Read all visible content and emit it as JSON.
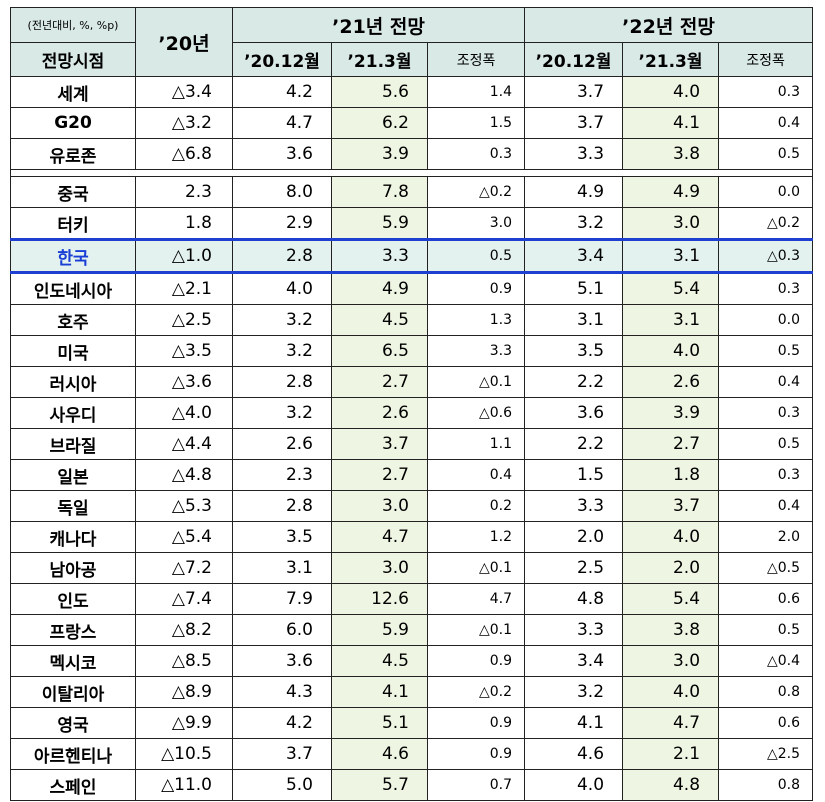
{
  "header": {
    "unit": "(전년대비, %, %p)",
    "row_label": "전망시점",
    "year20": "’20년",
    "group21": "’21년 전망",
    "group22": "’22년 전망",
    "col_dec": "’20.12월",
    "col_mar": "’21.3월",
    "col_adj": "조정폭"
  },
  "group1": [
    {
      "name": "세계",
      "y20": "△3.4",
      "a_dec": "4.2",
      "a_mar": "5.6",
      "a_adj": "1.4",
      "b_dec": "3.7",
      "b_mar": "4.0",
      "b_adj": "0.3"
    },
    {
      "name": "G20",
      "y20": "△3.2",
      "a_dec": "4.7",
      "a_mar": "6.2",
      "a_adj": "1.5",
      "b_dec": "3.7",
      "b_mar": "4.1",
      "b_adj": "0.4"
    },
    {
      "name": "유로존",
      "y20": "△6.8",
      "a_dec": "3.6",
      "a_mar": "3.9",
      "a_adj": "0.3",
      "b_dec": "3.3",
      "b_mar": "3.8",
      "b_adj": "0.5"
    }
  ],
  "group2": [
    {
      "name": "중국",
      "y20": "2.3",
      "a_dec": "8.0",
      "a_mar": "7.8",
      "a_adj": "△0.2",
      "b_dec": "4.9",
      "b_mar": "4.9",
      "b_adj": "0.0"
    },
    {
      "name": "터키",
      "y20": "1.8",
      "a_dec": "2.9",
      "a_mar": "5.9",
      "a_adj": "3.0",
      "b_dec": "3.2",
      "b_mar": "3.0",
      "b_adj": "△0.2"
    },
    {
      "name": "한국",
      "y20": "△1.0",
      "a_dec": "2.8",
      "a_mar": "3.3",
      "a_adj": "0.5",
      "b_dec": "3.4",
      "b_mar": "3.1",
      "b_adj": "△0.3"
    },
    {
      "name": "인도네시아",
      "y20": "△2.1",
      "a_dec": "4.0",
      "a_mar": "4.9",
      "a_adj": "0.9",
      "b_dec": "5.1",
      "b_mar": "5.4",
      "b_adj": "0.3"
    },
    {
      "name": "호주",
      "y20": "△2.5",
      "a_dec": "3.2",
      "a_mar": "4.5",
      "a_adj": "1.3",
      "b_dec": "3.1",
      "b_mar": "3.1",
      "b_adj": "0.0"
    },
    {
      "name": "미국",
      "y20": "△3.5",
      "a_dec": "3.2",
      "a_mar": "6.5",
      "a_adj": "3.3",
      "b_dec": "3.5",
      "b_mar": "4.0",
      "b_adj": "0.5"
    },
    {
      "name": "러시아",
      "y20": "△3.6",
      "a_dec": "2.8",
      "a_mar": "2.7",
      "a_adj": "△0.1",
      "b_dec": "2.2",
      "b_mar": "2.6",
      "b_adj": "0.4"
    },
    {
      "name": "사우디",
      "y20": "△4.0",
      "a_dec": "3.2",
      "a_mar": "2.6",
      "a_adj": "△0.6",
      "b_dec": "3.6",
      "b_mar": "3.9",
      "b_adj": "0.3"
    },
    {
      "name": "브라질",
      "y20": "△4.4",
      "a_dec": "2.6",
      "a_mar": "3.7",
      "a_adj": "1.1",
      "b_dec": "2.2",
      "b_mar": "2.7",
      "b_adj": "0.5"
    },
    {
      "name": "일본",
      "y20": "△4.8",
      "a_dec": "2.3",
      "a_mar": "2.7",
      "a_adj": "0.4",
      "b_dec": "1.5",
      "b_mar": "1.8",
      "b_adj": "0.3"
    },
    {
      "name": "독일",
      "y20": "△5.3",
      "a_dec": "2.8",
      "a_mar": "3.0",
      "a_adj": "0.2",
      "b_dec": "3.3",
      "b_mar": "3.7",
      "b_adj": "0.4"
    },
    {
      "name": "캐나다",
      "y20": "△5.4",
      "a_dec": "3.5",
      "a_mar": "4.7",
      "a_adj": "1.2",
      "b_dec": "2.0",
      "b_mar": "4.0",
      "b_adj": "2.0"
    },
    {
      "name": "남아공",
      "y20": "△7.2",
      "a_dec": "3.1",
      "a_mar": "3.0",
      "a_adj": "△0.1",
      "b_dec": "2.5",
      "b_mar": "2.0",
      "b_adj": "△0.5"
    },
    {
      "name": "인도",
      "y20": "△7.4",
      "a_dec": "7.9",
      "a_mar": "12.6",
      "a_adj": "4.7",
      "b_dec": "4.8",
      "b_mar": "5.4",
      "b_adj": "0.6"
    },
    {
      "name": "프랑스",
      "y20": "△8.2",
      "a_dec": "6.0",
      "a_mar": "5.9",
      "a_adj": "△0.1",
      "b_dec": "3.3",
      "b_mar": "3.8",
      "b_adj": "0.5"
    },
    {
      "name": "멕시코",
      "y20": "△8.5",
      "a_dec": "3.6",
      "a_mar": "4.5",
      "a_adj": "0.9",
      "b_dec": "3.4",
      "b_mar": "3.0",
      "b_adj": "△0.4"
    },
    {
      "name": "이탈리아",
      "y20": "△8.9",
      "a_dec": "4.3",
      "a_mar": "4.1",
      "a_adj": "△0.2",
      "b_dec": "3.2",
      "b_mar": "4.0",
      "b_adj": "0.8"
    },
    {
      "name": "영국",
      "y20": "△9.9",
      "a_dec": "4.2",
      "a_mar": "5.1",
      "a_adj": "0.9",
      "b_dec": "4.1",
      "b_mar": "4.7",
      "b_adj": "0.6"
    },
    {
      "name": "아르헨티나",
      "y20": "△10.5",
      "a_dec": "3.7",
      "a_mar": "4.6",
      "a_adj": "0.9",
      "b_dec": "4.6",
      "b_mar": "2.1",
      "b_adj": "△2.5"
    },
    {
      "name": "스페인",
      "y20": "△11.0",
      "a_dec": "5.0",
      "a_mar": "5.7",
      "a_adj": "0.7",
      "b_dec": "4.0",
      "b_mar": "4.8",
      "b_adj": "0.8"
    }
  ],
  "colors": {
    "header_bg": "#d9e9e6",
    "highlight_col": "#eef5e2",
    "korea_row_bg": "#e3f2ee",
    "korea_border": "#1f3fd0",
    "korea_text": "#1a3fd6"
  }
}
